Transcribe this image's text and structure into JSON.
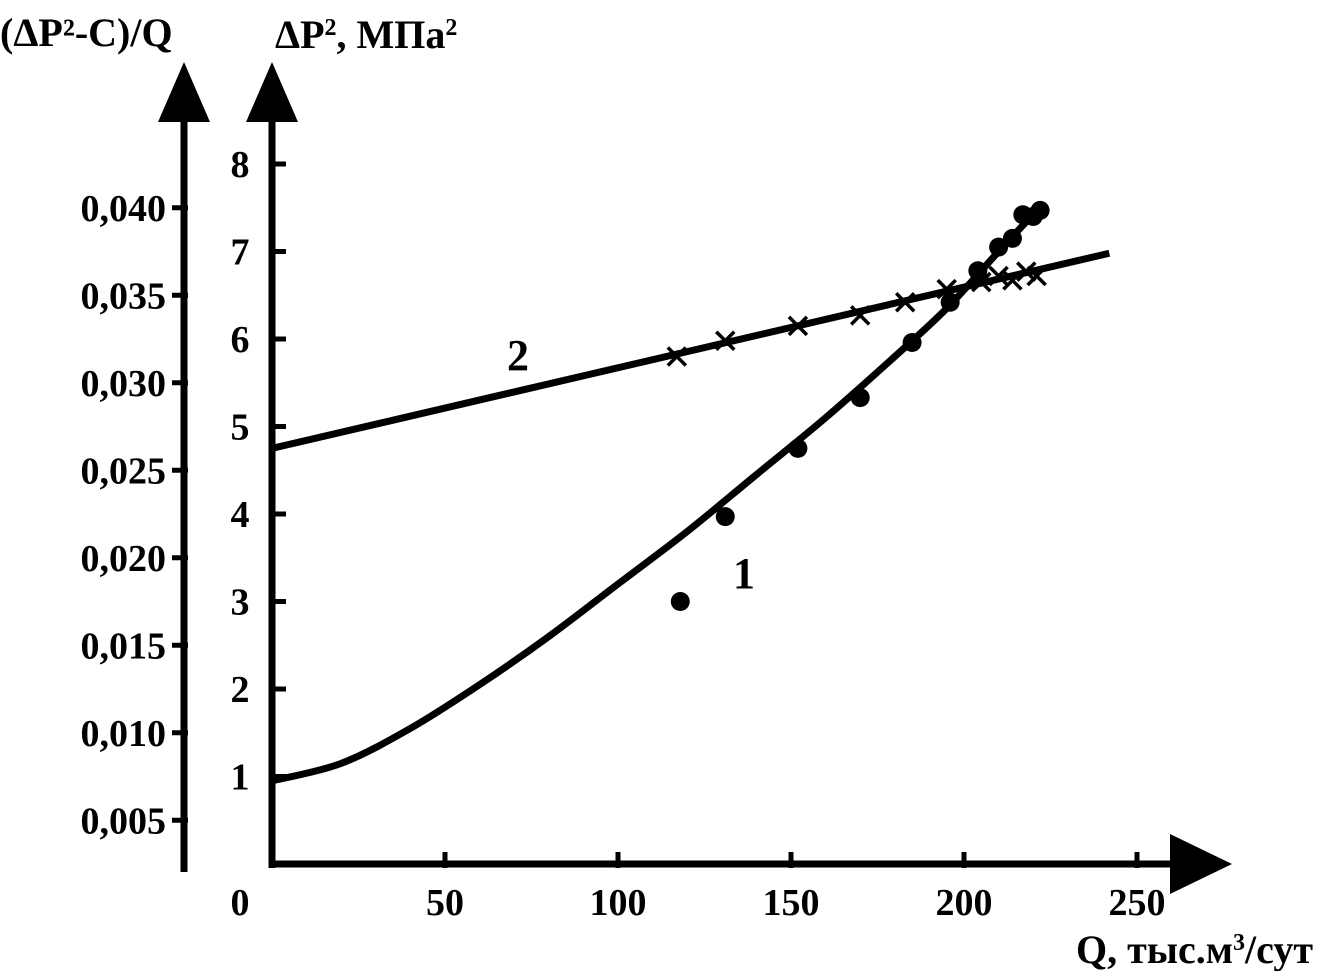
{
  "chart_data": {
    "type": "scatter",
    "title": "",
    "left_axis": {
      "label": "(ΔP²-С)/Q",
      "ticks": [
        "0,005",
        "0,010",
        "0,015",
        "0,020",
        "0,025",
        "0,030",
        "0,035",
        "0,040"
      ],
      "tick_values": [
        0.005,
        0.01,
        0.015,
        0.02,
        0.025,
        0.03,
        0.035,
        0.04
      ],
      "ylim": [
        0.0025,
        0.0425
      ]
    },
    "right_axis": {
      "label_main": "ΔP",
      "label_sup": "2",
      "label_unit": ", МПа",
      "label_unit_sup": "2",
      "ticks": [
        "1",
        "2",
        "3",
        "4",
        "5",
        "6",
        "7",
        "8"
      ],
      "tick_values": [
        1,
        2,
        3,
        4,
        5,
        6,
        7,
        8
      ],
      "ylim": [
        0,
        8
      ]
    },
    "x_axis": {
      "label_main": "Q, тыс.м",
      "label_sup": "3",
      "label_unit": "/сут",
      "ticks": [
        "0",
        "50",
        "100",
        "150",
        "200",
        "250"
      ],
      "tick_values": [
        0,
        50,
        100,
        150,
        200,
        250
      ],
      "xlim": [
        0,
        250
      ]
    },
    "series": [
      {
        "name": "1",
        "axis": "right",
        "marker": "dot",
        "points": [
          {
            "x": 118,
            "y": 3.0
          },
          {
            "x": 131,
            "y": 3.97
          },
          {
            "x": 152,
            "y": 4.75
          },
          {
            "x": 170,
            "y": 5.33
          },
          {
            "x": 185,
            "y": 5.96
          },
          {
            "x": 196,
            "y": 6.42
          },
          {
            "x": 204,
            "y": 6.78
          },
          {
            "x": 210,
            "y": 7.05
          },
          {
            "x": 214,
            "y": 7.15
          },
          {
            "x": 217,
            "y": 7.42
          },
          {
            "x": 220,
            "y": 7.4
          },
          {
            "x": 222,
            "y": 7.47
          }
        ],
        "fit": [
          {
            "x": 0,
            "y": 0.95
          },
          {
            "x": 20,
            "y": 1.15
          },
          {
            "x": 40,
            "y": 1.55
          },
          {
            "x": 60,
            "y": 2.05
          },
          {
            "x": 80,
            "y": 2.6
          },
          {
            "x": 100,
            "y": 3.2
          },
          {
            "x": 120,
            "y": 3.8
          },
          {
            "x": 140,
            "y": 4.45
          },
          {
            "x": 160,
            "y": 5.1
          },
          {
            "x": 180,
            "y": 5.8
          },
          {
            "x": 195,
            "y": 6.35
          },
          {
            "x": 210,
            "y": 7.0
          },
          {
            "x": 223,
            "y": 7.55
          }
        ]
      },
      {
        "name": "2",
        "axis": "right",
        "marker": "cross",
        "points": [
          {
            "x": 117,
            "y": 5.8
          },
          {
            "x": 131,
            "y": 5.98
          },
          {
            "x": 152,
            "y": 6.15
          },
          {
            "x": 170,
            "y": 6.27
          },
          {
            "x": 183,
            "y": 6.42
          },
          {
            "x": 195,
            "y": 6.57
          },
          {
            "x": 205,
            "y": 6.65
          },
          {
            "x": 210,
            "y": 6.72
          },
          {
            "x": 214,
            "y": 6.67
          },
          {
            "x": 218,
            "y": 6.77
          },
          {
            "x": 221,
            "y": 6.72
          }
        ],
        "fit": [
          {
            "x": 0,
            "y": 4.75
          },
          {
            "x": 242,
            "y": 6.98
          }
        ]
      }
    ],
    "grid": false,
    "legend": "none"
  }
}
